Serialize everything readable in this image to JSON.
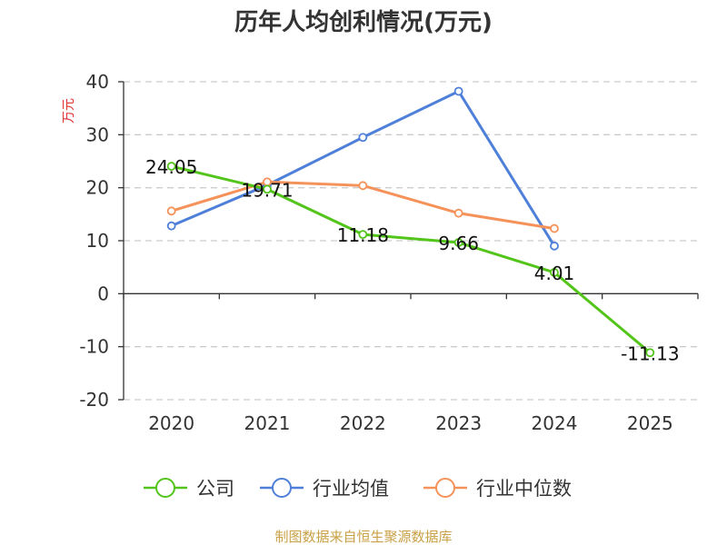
{
  "chart_data": {
    "type": "line",
    "title": "历年人均创利情况(万元)",
    "ylabel": "万元",
    "categories": [
      "2020",
      "2021",
      "2022",
      "2023",
      "2024",
      "2025"
    ],
    "ylim": [
      -20,
      40
    ],
    "yticks": [
      "40",
      "30",
      "20",
      "10",
      "0",
      "-10",
      "-20"
    ],
    "ytick_values": [
      40,
      30,
      20,
      10,
      0,
      -10,
      -20
    ],
    "grid": true,
    "legend_position": "bottom",
    "series": [
      {
        "name": "公司",
        "color": "#52c41a",
        "values": [
          24.05,
          19.71,
          11.18,
          9.66,
          4.01,
          -11.13
        ],
        "labels": [
          "24.05",
          "19.71",
          "11.18",
          "9.66",
          "4.01",
          "-11.13"
        ]
      },
      {
        "name": "行业均值",
        "color": "#4e7fd9",
        "values": [
          12.8,
          20.5,
          29.5,
          38.2,
          9.0,
          null
        ]
      },
      {
        "name": "行业中位数",
        "color": "#f5925a",
        "values": [
          15.6,
          21.1,
          20.4,
          15.2,
          12.3,
          null
        ]
      }
    ]
  },
  "footer": {
    "source": "制图数据来自恒生聚源数据库",
    "color": "#c8a046"
  },
  "colors": {
    "axis": "#333333",
    "grid": "#cccccc",
    "unit": "#e0332f"
  }
}
